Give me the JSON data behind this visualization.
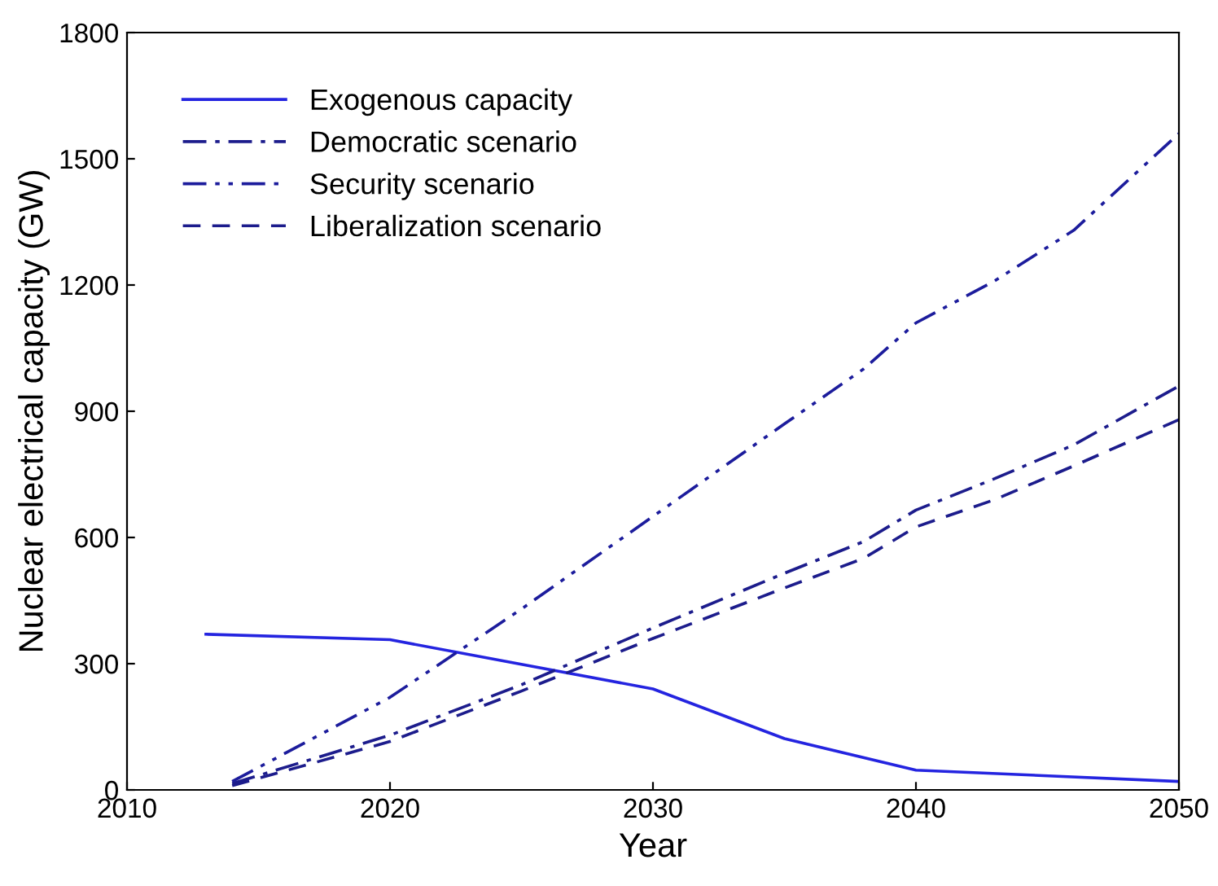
{
  "chart_data": {
    "type": "line",
    "xlabel": "Year",
    "ylabel": "Nuclear electrical capacity (GW)",
    "xlim": [
      2010,
      2050
    ],
    "xticks": [
      2010,
      2020,
      2030,
      2040,
      2050
    ],
    "ylim": [
      0,
      1800
    ],
    "yticks": [
      0,
      300,
      600,
      900,
      1200,
      1500,
      1800
    ],
    "grid": false,
    "legend": "top left",
    "marker": "none",
    "series": [
      {
        "name": "Exogenous capacity",
        "color": "#2424e0",
        "line_style": "solid",
        "x": [
          2013,
          2020,
          2030,
          2035,
          2040,
          2050
        ],
        "values": [
          370,
          357,
          240,
          122,
          47,
          20
        ]
      },
      {
        "name": "Democratic scenario",
        "color": "#1c1c8c",
        "line_style": "dashdot",
        "x": [
          2014,
          2020,
          2025,
          2030,
          2035,
          2038,
          2040,
          2043,
          2046,
          2050
        ],
        "values": [
          15,
          130,
          250,
          385,
          515,
          590,
          665,
          740,
          820,
          960
        ]
      },
      {
        "name": "Security scenario",
        "color": "#1c1c9c",
        "line_style": "dashdotdot",
        "x": [
          2014,
          2020,
          2025,
          2030,
          2035,
          2038,
          2040,
          2043,
          2046,
          2050
        ],
        "values": [
          20,
          220,
          430,
          650,
          870,
          1000,
          1110,
          1210,
          1330,
          1560
        ]
      },
      {
        "name": "Liberalization scenario",
        "color": "#1c1c8c",
        "line_style": "dashed",
        "x": [
          2014,
          2020,
          2025,
          2030,
          2035,
          2038,
          2040,
          2043,
          2046,
          2050
        ],
        "values": [
          10,
          115,
          235,
          360,
          480,
          550,
          625,
          690,
          770,
          880
        ]
      }
    ]
  }
}
